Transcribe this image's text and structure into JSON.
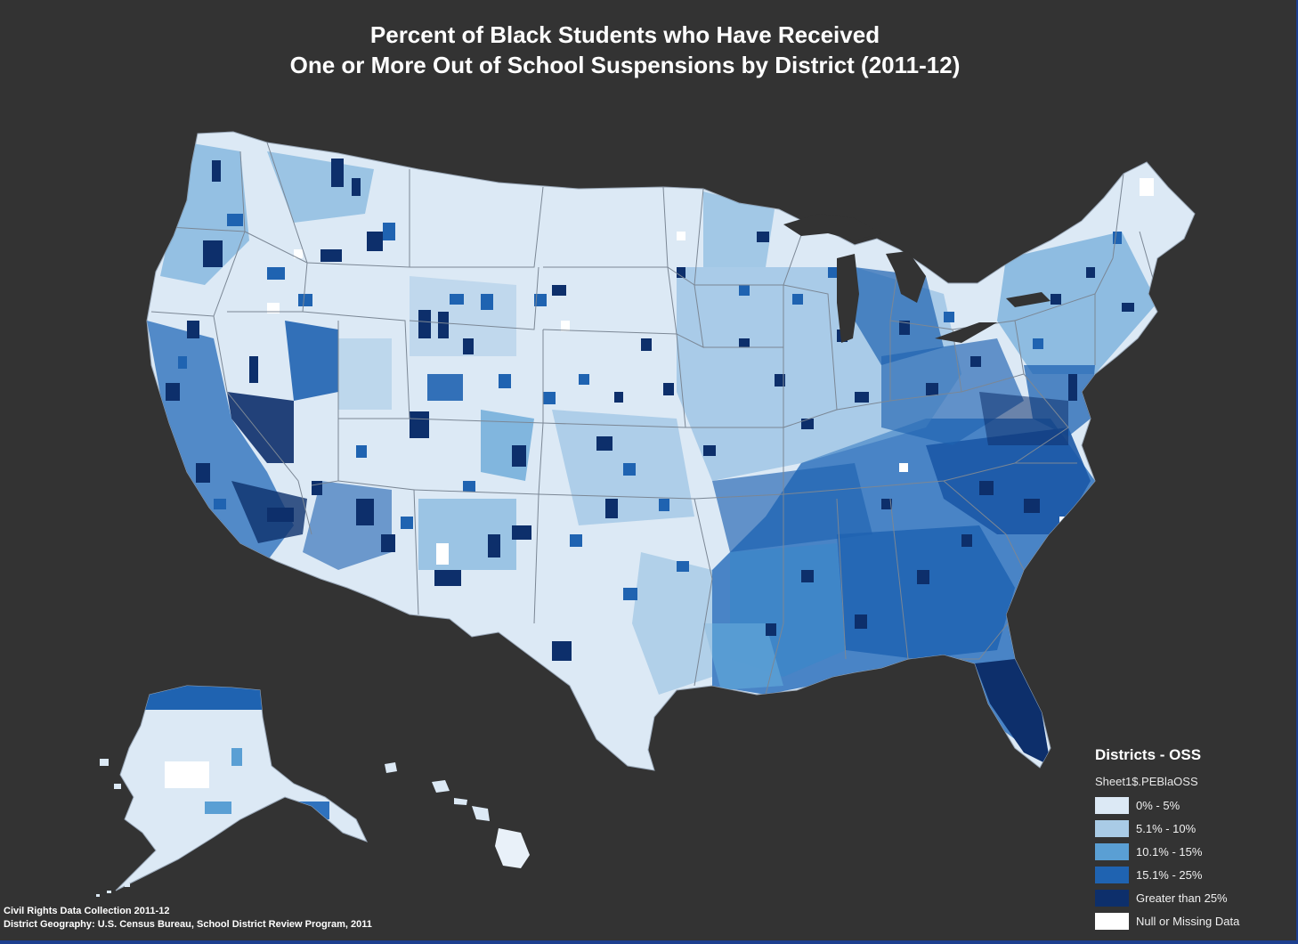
{
  "title": {
    "line1": "Percent of Black Students who Have Received",
    "line2": "One or More Out of School Suspensions by District (2011-12)"
  },
  "legend": {
    "title": "Districts - OSS",
    "field": "Sheet1$.PEBlaOSS",
    "items": [
      {
        "label": "0% - 5%",
        "color": "#dce9f5"
      },
      {
        "label": "5.1% - 10%",
        "color": "#a9cbe6"
      },
      {
        "label": "10.1% - 15%",
        "color": "#5a9fd4"
      },
      {
        "label": "15.1% - 25%",
        "color": "#1f63b1"
      },
      {
        "label": "Greater than 25%",
        "color": "#0d2f6b"
      },
      {
        "label": "Null or Missing Data",
        "color": "#ffffff"
      }
    ]
  },
  "credits": {
    "line1": "Civil Rights Data Collection 2011-12",
    "line2": "District Geography: U.S. Census Bureau, School District Review Program, 2011"
  },
  "colors": {
    "background": "#333333",
    "frame_border": "#1d3f8f",
    "state_border": "#8a8a8a"
  }
}
